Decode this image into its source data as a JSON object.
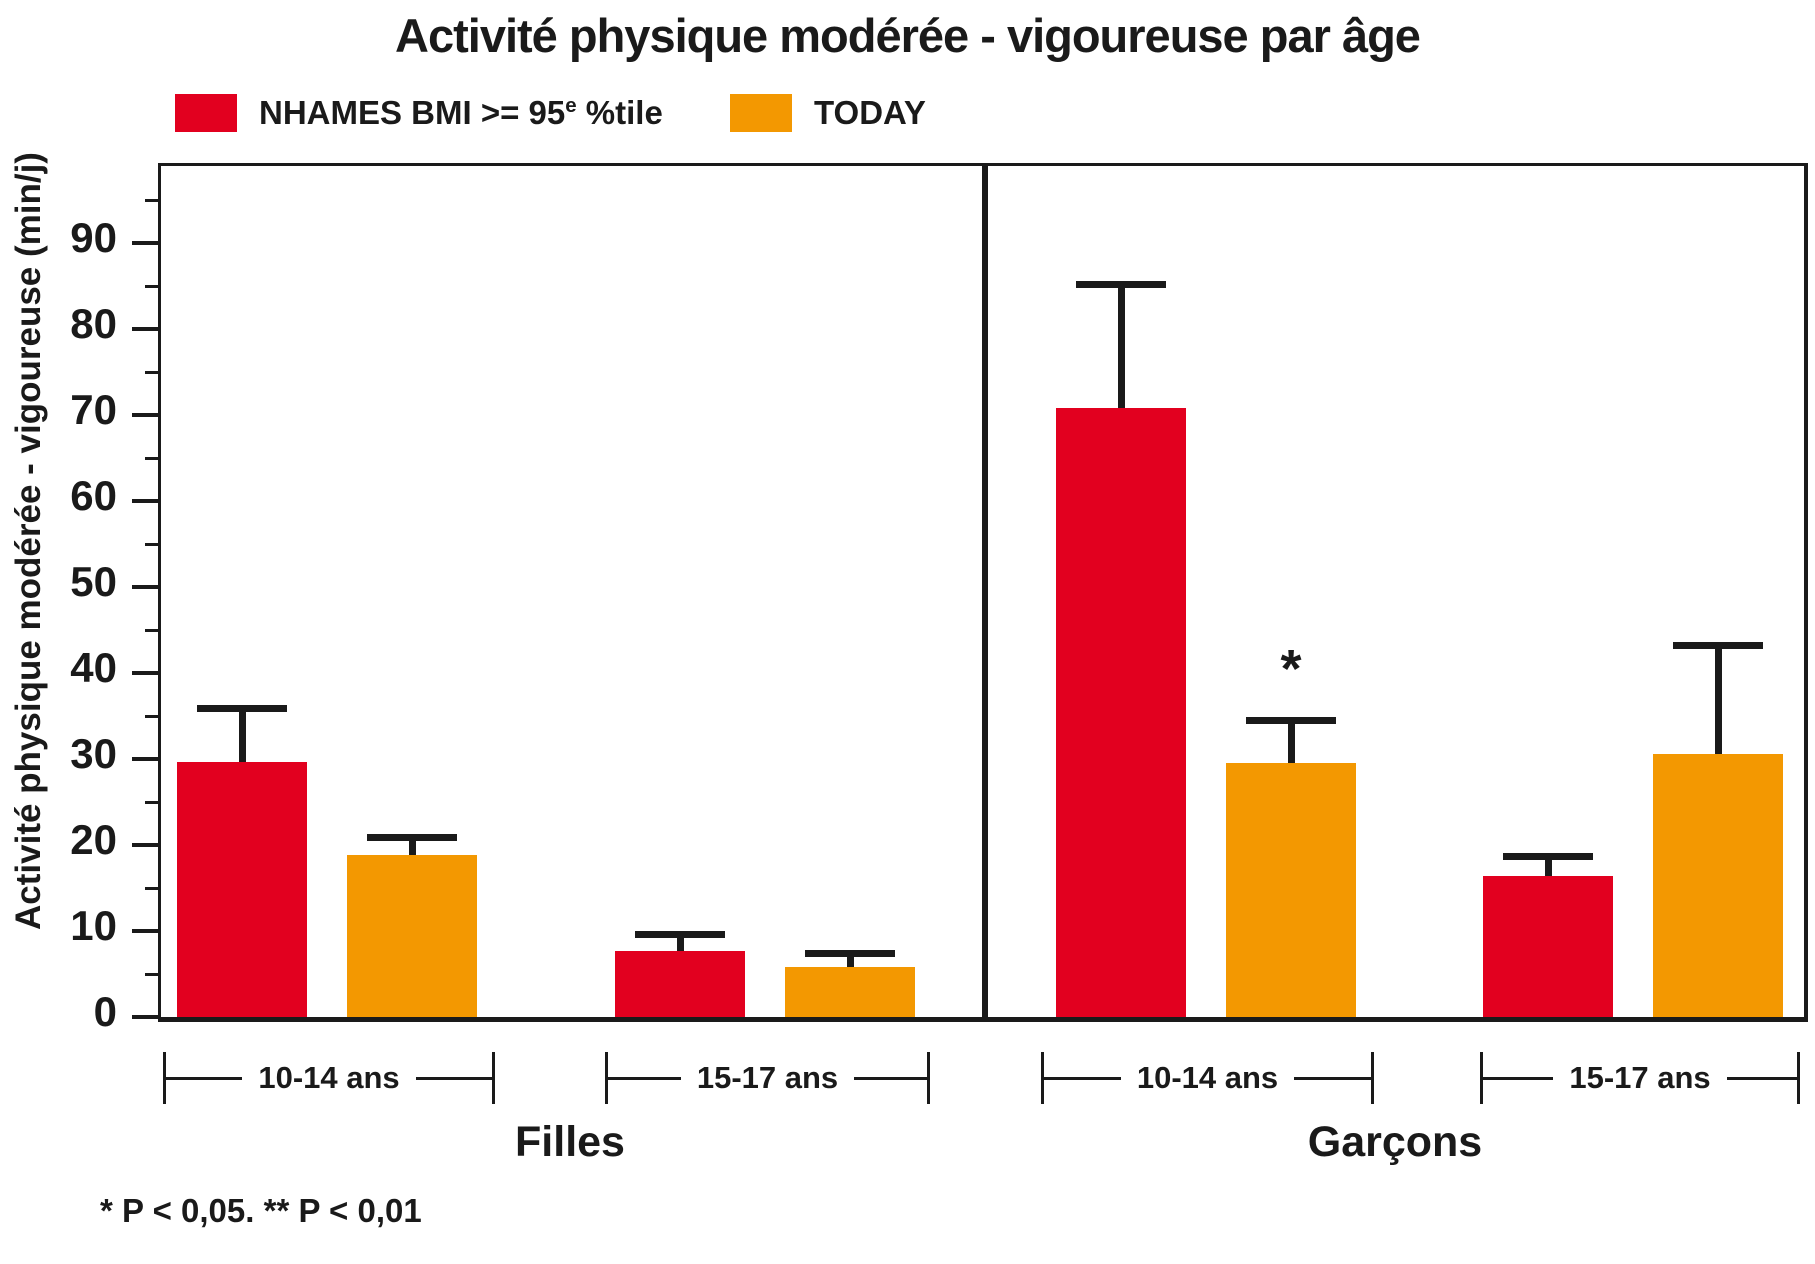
{
  "title": "Activité physique modérée - vigoureuse par âge",
  "legend": {
    "items": [
      {
        "name": "NHAMES BMI >= 95e %tile",
        "prefix": "NHAMES BMI >= 95",
        "sup": "e",
        "suffix": " %tile",
        "color": "#e2001f"
      },
      {
        "name": "TODAY",
        "prefix": "TODAY",
        "sup": "",
        "suffix": "",
        "color": "#f39801"
      }
    ]
  },
  "footnote": "* P < 0,05. ** P < 0,01",
  "chart_data": {
    "type": "bar",
    "title": "Activité physique modérée - vigoureuse par âge",
    "ylabel": "Activité physique modérée - vigoureuse (min/j)",
    "xlabel": "",
    "ylim": [
      0,
      99
    ],
    "yticks": [
      0,
      10,
      20,
      30,
      40,
      50,
      60,
      70,
      80,
      90
    ],
    "minor_tick_step": 5,
    "grid": false,
    "legend_position": "top",
    "series_names": [
      "NHAMES BMI >= 95e %tile",
      "TODAY"
    ],
    "series_colors": [
      "#e2001f",
      "#f39801"
    ],
    "panels": [
      {
        "label": "Filles",
        "groups": [
          {
            "label": "10-14 ans",
            "bars": [
              {
                "series": "NHAMES BMI >= 95e %tile",
                "value": 29.7,
                "error_top": 36.0,
                "annotation": ""
              },
              {
                "series": "TODAY",
                "value": 18.9,
                "error_top": 20.9,
                "annotation": ""
              }
            ]
          },
          {
            "label": "15-17 ans",
            "bars": [
              {
                "series": "NHAMES BMI >= 95e %tile",
                "value": 7.7,
                "error_top": 9.7,
                "annotation": ""
              },
              {
                "series": "TODAY",
                "value": 5.8,
                "error_top": 7.5,
                "annotation": ""
              }
            ]
          }
        ]
      },
      {
        "label": "Garçons",
        "groups": [
          {
            "label": "10-14 ans",
            "bars": [
              {
                "series": "NHAMES BMI >= 95e %tile",
                "value": 70.8,
                "error_top": 85.3,
                "annotation": ""
              },
              {
                "series": "TODAY",
                "value": 29.5,
                "error_top": 34.6,
                "annotation": "*"
              }
            ]
          },
          {
            "label": "15-17 ans",
            "bars": [
              {
                "series": "NHAMES BMI >= 95e %tile",
                "value": 16.4,
                "error_top": 18.7,
                "annotation": ""
              },
              {
                "series": "TODAY",
                "value": 30.6,
                "error_top": 43.3,
                "annotation": ""
              }
            ]
          }
        ]
      }
    ]
  }
}
